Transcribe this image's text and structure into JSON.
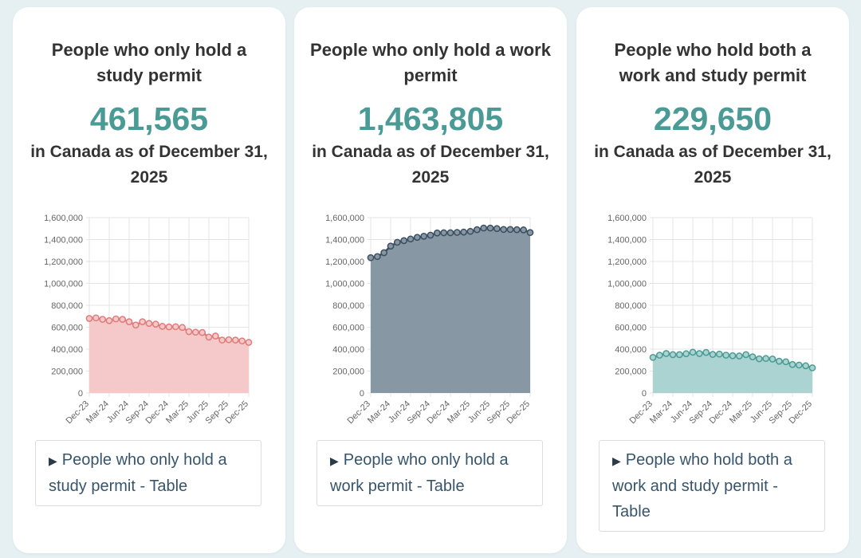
{
  "cards": [
    {
      "title": "People who only hold a study permit",
      "number": "461,565",
      "subtitle": "in Canada as of December 31, 2025",
      "details_label": "People who only hold a study permit - Table"
    },
    {
      "title": "People who only hold a work permit",
      "number": "1,463,805",
      "subtitle": "in Canada as of December 31, 2025",
      "details_label": "People who only hold a work permit - Table"
    },
    {
      "title": "People who hold both a work and study permit",
      "number": "229,650",
      "subtitle": "in Canada as of December 31, 2025",
      "details_label": "People who hold both a work and study permit - Table"
    }
  ],
  "chart_data": [
    {
      "type": "area",
      "categories": [
        "Dec-23",
        "Jan-24",
        "Feb-24",
        "Mar-24",
        "Apr-24",
        "May-24",
        "Jun-24",
        "Jul-24",
        "Aug-24",
        "Sep-24",
        "Oct-24",
        "Nov-24",
        "Dec-24",
        "Jan-25",
        "Feb-25",
        "Mar-25",
        "Apr-25",
        "May-25",
        "Jun-25",
        "Jul-25",
        "Aug-25",
        "Sep-25",
        "Oct-25",
        "Nov-25",
        "Dec-25"
      ],
      "tick_labels": [
        "Dec-23",
        "Mar-24",
        "Jun-24",
        "Sep-24",
        "Dec-24",
        "Mar-25",
        "Jun-25",
        "Sep-25",
        "Dec-25"
      ],
      "values": [
        680000,
        685000,
        672000,
        660000,
        676000,
        672000,
        650000,
        620000,
        650000,
        635000,
        628000,
        608000,
        603000,
        605000,
        598000,
        560000,
        555000,
        552000,
        510000,
        520000,
        483000,
        486000,
        483000,
        475000,
        461565
      ],
      "ylim": [
        0,
        1600000
      ],
      "yticks": [
        "0",
        "200,000",
        "400,000",
        "600,000",
        "800,000",
        "1,000,000",
        "1,200,000",
        "1,400,000",
        "1,600,000"
      ],
      "grid": true,
      "line_color": "#e07b7b",
      "fill_color": "#f5c9c9"
    },
    {
      "type": "area",
      "categories": [
        "Dec-23",
        "Jan-24",
        "Feb-24",
        "Mar-24",
        "Apr-24",
        "May-24",
        "Jun-24",
        "Jul-24",
        "Aug-24",
        "Sep-24",
        "Oct-24",
        "Nov-24",
        "Dec-24",
        "Jan-25",
        "Feb-25",
        "Mar-25",
        "Apr-25",
        "May-25",
        "Jun-25",
        "Jul-25",
        "Aug-25",
        "Sep-25",
        "Oct-25",
        "Nov-25",
        "Dec-25"
      ],
      "tick_labels": [
        "Dec-23",
        "Mar-24",
        "Jun-24",
        "Sep-24",
        "Dec-24",
        "Mar-25",
        "Jun-25",
        "Sep-25",
        "Dec-25"
      ],
      "values": [
        1235000,
        1245000,
        1280000,
        1340000,
        1375000,
        1390000,
        1405000,
        1420000,
        1430000,
        1440000,
        1460000,
        1462000,
        1462000,
        1465000,
        1468000,
        1475000,
        1490000,
        1505000,
        1505000,
        1500000,
        1492000,
        1492000,
        1490000,
        1488000,
        1463805
      ],
      "ylim": [
        0,
        1600000
      ],
      "yticks": [
        "0",
        "200,000",
        "400,000",
        "600,000",
        "800,000",
        "1,000,000",
        "1,200,000",
        "1,400,000",
        "1,600,000"
      ],
      "grid": true,
      "line_color": "#3b4f61",
      "fill_color": "#8797a3"
    },
    {
      "type": "area",
      "categories": [
        "Dec-23",
        "Jan-24",
        "Feb-24",
        "Mar-24",
        "Apr-24",
        "May-24",
        "Jun-24",
        "Jul-24",
        "Aug-24",
        "Sep-24",
        "Oct-24",
        "Nov-24",
        "Dec-24",
        "Jan-25",
        "Feb-25",
        "Mar-25",
        "Apr-25",
        "May-25",
        "Jun-25",
        "Jul-25",
        "Aug-25",
        "Sep-25",
        "Oct-25",
        "Nov-25",
        "Dec-25"
      ],
      "tick_labels": [
        "Dec-23",
        "Mar-24",
        "Jun-24",
        "Sep-24",
        "Dec-24",
        "Mar-25",
        "Jun-25",
        "Sep-25",
        "Dec-25"
      ],
      "values": [
        325000,
        345000,
        360000,
        350000,
        350000,
        358000,
        372000,
        360000,
        370000,
        352000,
        355000,
        345000,
        340000,
        338000,
        350000,
        330000,
        312000,
        315000,
        310000,
        290000,
        285000,
        260000,
        255000,
        248000,
        229650
      ],
      "ylim": [
        0,
        1600000
      ],
      "yticks": [
        "0",
        "200,000",
        "400,000",
        "600,000",
        "800,000",
        "1,000,000",
        "1,200,000",
        "1,400,000",
        "1,600,000"
      ],
      "grid": true,
      "line_color": "#4a9b95",
      "fill_color": "#abd3d1"
    }
  ]
}
